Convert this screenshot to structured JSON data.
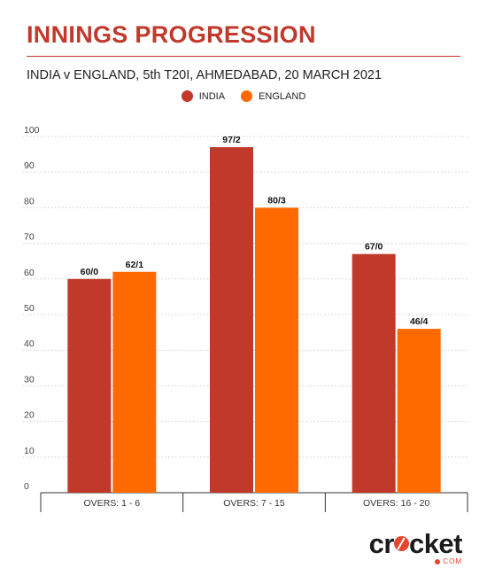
{
  "chart_data": {
    "type": "bar",
    "title": "INNINGS PROGRESSION",
    "subtitle": "INDIA v ENGLAND, 5th T20I, AHMEDABAD,  20 MARCH 2021",
    "categories": [
      "OVERS: 1 - 6",
      "OVERS: 7 - 15",
      "OVERS: 16 - 20"
    ],
    "series": [
      {
        "name": "INDIA",
        "color": "#c0392b",
        "values": [
          60,
          97,
          67
        ],
        "labels": [
          "60/0",
          "97/2",
          "67/0"
        ]
      },
      {
        "name": "ENGLAND",
        "color": "#ff6a00",
        "values": [
          62,
          80,
          46
        ],
        "labels": [
          "62/1",
          "80/3",
          "46/4"
        ]
      }
    ],
    "ylim": [
      0,
      100
    ],
    "yticks": [
      0,
      10,
      20,
      30,
      40,
      50,
      60,
      70,
      80,
      90,
      100
    ],
    "grid": "horizontal dotted",
    "legend": "top-center"
  },
  "brand": {
    "logo_word_start": "cr",
    "logo_word_end": "cket",
    "logo_sub": "COM",
    "accent": "#e8452f"
  }
}
